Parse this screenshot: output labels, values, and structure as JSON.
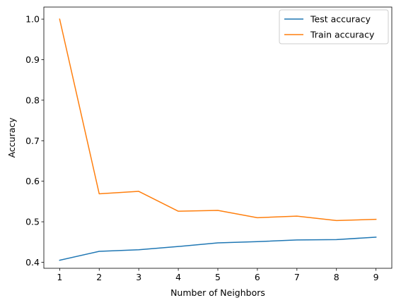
{
  "chart_data": {
    "type": "line",
    "title": "",
    "xlabel": "Number of Neighbors",
    "ylabel": "Accuracy",
    "x": [
      1,
      2,
      3,
      4,
      5,
      6,
      7,
      8,
      9
    ],
    "xticks": [
      "1",
      "2",
      "3",
      "4",
      "5",
      "6",
      "7",
      "8",
      "9"
    ],
    "yticks": [
      "0.4",
      "0.5",
      "0.6",
      "0.7",
      "0.8",
      "0.9",
      "1.0"
    ],
    "xlim": [
      0.6,
      9.4
    ],
    "ylim": [
      0.3852,
      1.0298
    ],
    "grid": false,
    "legend_position": "top-right",
    "series": [
      {
        "name": "Test accuracy",
        "color": "#1f77b4",
        "values": [
          0.405,
          0.427,
          0.431,
          0.439,
          0.448,
          0.451,
          0.455,
          0.456,
          0.462
        ]
      },
      {
        "name": "Train accuracy",
        "color": "#ff7f0e",
        "values": [
          1.0,
          0.569,
          0.575,
          0.526,
          0.528,
          0.51,
          0.514,
          0.503,
          0.506
        ]
      }
    ]
  }
}
